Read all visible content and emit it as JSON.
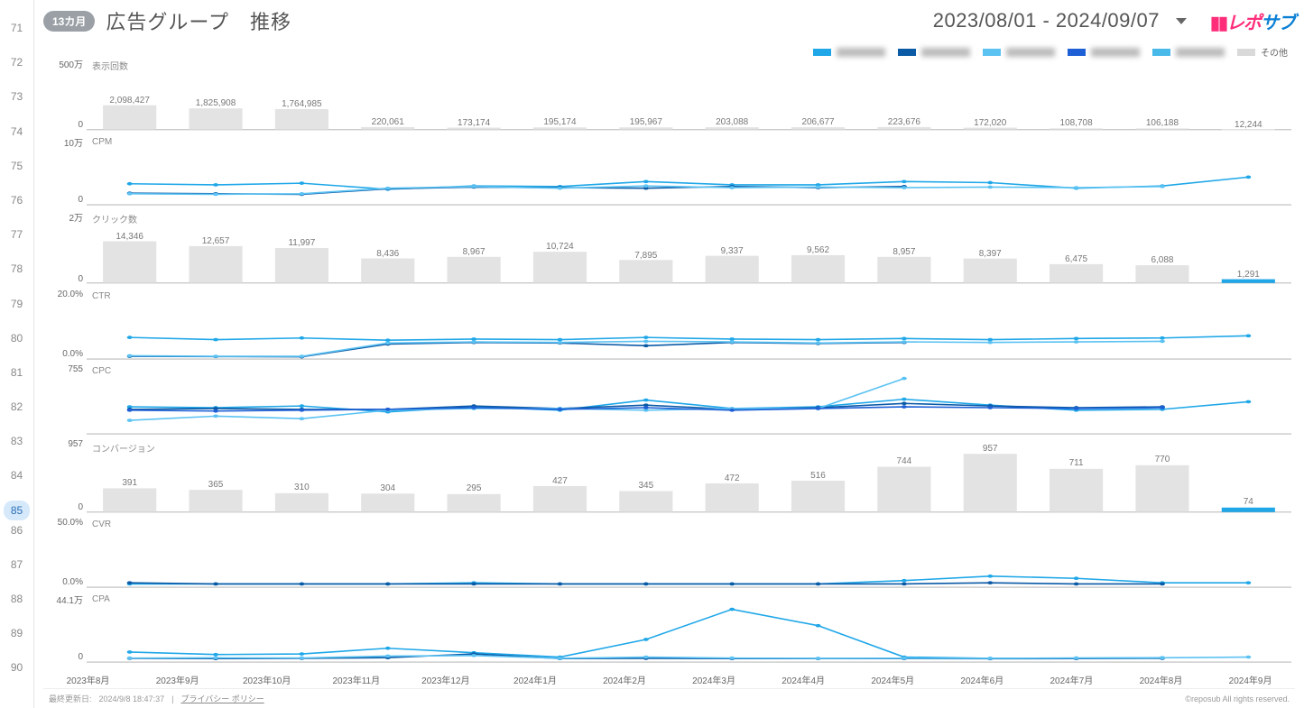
{
  "gutter": {
    "start": 71,
    "end": 90,
    "selected": 85
  },
  "header": {
    "badge": "13カ月",
    "title": "広告グループ　推移",
    "dateRange": "2023/08/01 - 2024/09/07",
    "logo_a": "レポ",
    "logo_b": "サブ"
  },
  "legend": {
    "series_colors": [
      "#1fa7e8",
      "#0b5aa6",
      "#5bc2f2",
      "#1e5fd6",
      "#49b9ea"
    ],
    "other_label": "その他",
    "other_color": "#d9d9d9"
  },
  "months": [
    "2023年8月",
    "2023年9月",
    "2023年10月",
    "2023年11月",
    "2023年12月",
    "2024年1月",
    "2024年2月",
    "2024年3月",
    "2024年4月",
    "2024年5月",
    "2024年6月",
    "2024年7月",
    "2024年8月",
    "2024年9月"
  ],
  "colors": {
    "axis": "#aaaaaa",
    "bar": "#e3e3e3",
    "label": "#777777",
    "line1": "#1fa7e8",
    "line2": "#0b5aa6",
    "line3": "#5bc2f2",
    "line4": "#1e5fd6",
    "line5": "#49b9ea",
    "accent_fill": "#1fa7e8"
  },
  "charts": [
    {
      "key": "impressions",
      "type": "bar",
      "name": "表示回数",
      "ymax_label": "500万",
      "ymin_label": "0",
      "ymax": 5000000,
      "values": [
        2098427,
        1825908,
        1764985,
        220061,
        173174,
        195174,
        195967,
        203088,
        206677,
        223676,
        172020,
        108708,
        106188,
        12244
      ],
      "value_labels": [
        "2,098,427",
        "1,825,908",
        "1,764,985",
        "220,061",
        "173,174",
        "195,174",
        "195,967",
        "203,088",
        "206,677",
        "223,676",
        "172,020",
        "108,708",
        "106,188",
        "12,244"
      ]
    },
    {
      "key": "cpm",
      "type": "line",
      "name": "CPM",
      "ymax_label": "10万",
      "ymin_label": "0",
      "ymax": 100000,
      "series": [
        [
          38000,
          36000,
          39000,
          28000,
          34000,
          33000,
          42000,
          36000,
          36000,
          42000,
          40000,
          30000,
          34000,
          50000
        ],
        [
          21000,
          20000,
          19000,
          29000,
          32000,
          31000,
          30000,
          33000,
          31000,
          33000,
          null,
          null,
          null,
          null
        ],
        [
          20000,
          19000,
          20000,
          30000,
          33000,
          30000,
          34000,
          31000,
          32000,
          31000,
          32000,
          31000,
          33000,
          null
        ]
      ]
    },
    {
      "key": "clicks",
      "type": "bar",
      "name": "クリック数",
      "ymax_label": "2万",
      "ymin_label": "0",
      "ymax": 20000,
      "values": [
        14346,
        12657,
        11997,
        8436,
        8967,
        10724,
        7895,
        9337,
        9562,
        8957,
        8397,
        6475,
        6088,
        1291
      ],
      "value_labels": [
        "14,346",
        "12,657",
        "11,997",
        "8,436",
        "8,967",
        "10,724",
        "7,895",
        "9,337",
        "9,562",
        "8,957",
        "8,397",
        "6,475",
        "6,088",
        "1,291"
      ],
      "last_accent": true
    },
    {
      "key": "ctr",
      "type": "line",
      "name": "CTR",
      "ymax_label": "20.0%",
      "ymin_label": "0.0%",
      "ymax": 20,
      "series": [
        [
          7.8,
          7.0,
          7.6,
          6.8,
          7.2,
          7.0,
          7.8,
          7.2,
          7.0,
          7.4,
          7.0,
          7.4,
          7.6,
          8.4
        ],
        [
          1.0,
          0.9,
          0.8,
          5.4,
          6.0,
          5.8,
          4.8,
          6.0,
          5.6,
          6.0,
          null,
          null,
          null,
          null
        ],
        [
          1.2,
          1.0,
          1.0,
          5.8,
          6.2,
          6.0,
          6.4,
          6.2,
          5.8,
          6.2,
          6.0,
          6.2,
          6.4,
          null
        ]
      ]
    },
    {
      "key": "cpc",
      "type": "line",
      "name": "CPC",
      "ymax_label": "755",
      "ymin_label": "",
      "ymax": 755,
      "ymin": 100,
      "series": [
        [
          420,
          410,
          430,
          360,
          420,
          380,
          500,
          400,
          420,
          510,
          440,
          380,
          390,
          480
        ],
        [
          390,
          400,
          390,
          390,
          430,
          400,
          440,
          390,
          410,
          460,
          430,
          410,
          420,
          null
        ],
        [
          260,
          310,
          280,
          380,
          400,
          400,
          380,
          400,
          400,
          755,
          null,
          null,
          null,
          null
        ],
        [
          380,
          370,
          380,
          390,
          410,
          390,
          410,
          380,
          400,
          420,
          410,
          400,
          410,
          null
        ]
      ]
    },
    {
      "key": "conversions",
      "type": "bar",
      "name": "コンバージョン",
      "ymax_label": "957",
      "ymin_label": "0",
      "ymax": 957,
      "values": [
        391,
        365,
        310,
        304,
        295,
        427,
        345,
        472,
        516,
        744,
        957,
        711,
        770,
        74
      ],
      "value_labels": [
        "391",
        "365",
        "310",
        "304",
        "295",
        "427",
        "345",
        "472",
        "516",
        "744",
        "957",
        "711",
        "770",
        "74"
      ],
      "last_accent": true
    },
    {
      "key": "cvr",
      "type": "line",
      "name": "CVR",
      "ymax_label": "50.0%",
      "ymin_label": "0.0%",
      "ymax": 50,
      "series": [
        [
          3,
          3,
          3,
          3,
          4,
          3,
          3,
          3,
          3,
          6,
          10,
          8,
          4,
          4
        ],
        [
          4,
          3,
          3,
          3,
          3,
          3,
          3,
          3,
          3,
          3,
          4,
          3,
          3,
          null
        ]
      ]
    },
    {
      "key": "cpa",
      "type": "line",
      "name": "CPA",
      "ymax_label": "44.1万",
      "ymin_label": "0",
      "ymax": 441000,
      "series": [
        [
          80000,
          60000,
          65000,
          110000,
          75000,
          40000,
          180000,
          420000,
          290000,
          40000,
          30000,
          32000,
          35000,
          null
        ],
        [
          30000,
          28000,
          30000,
          35000,
          65000,
          28000,
          30000,
          28000,
          28000,
          28000,
          27000,
          28000,
          30000,
          null
        ],
        [
          32000,
          34000,
          33000,
          48000,
          52000,
          30000,
          40000,
          32000,
          30000,
          31000,
          30000,
          32000,
          34000,
          40000
        ]
      ]
    }
  ],
  "footer": {
    "updated_label": "最終更新日:",
    "updated_value": "2024/9/8 18:47:37",
    "privacy": "プライバシー ポリシー",
    "copyright": "©reposub All rights reserved."
  }
}
